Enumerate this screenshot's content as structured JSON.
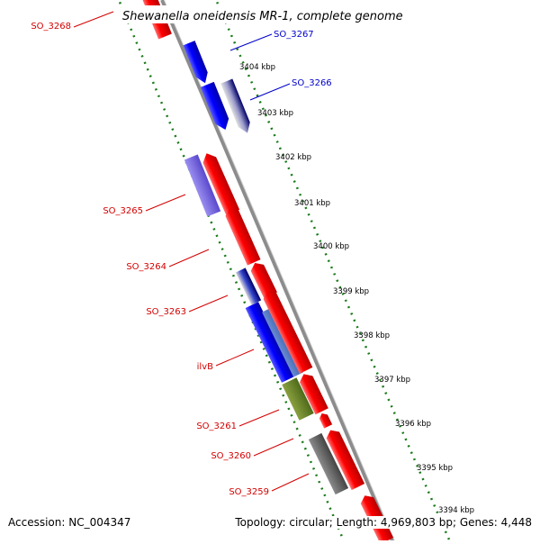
{
  "title": "Shewanella oneidensis MR-1, complete genome",
  "footer": {
    "accession": "Accession: NC_004347",
    "info": "Topology: circular; Length: 4,969,803 bp; Genes: 4,448"
  },
  "colors": {
    "backbone": "#8c8c8c",
    "tick": "#1a7a1a",
    "red_label": "#d40000",
    "blue_label": "#0000cc"
  },
  "kbp_ticks": [
    "3404 kbp",
    "3403 kbp",
    "3402 kbp",
    "3401 kbp",
    "3400 kbp",
    "3399 kbp",
    "3398 kbp",
    "3397 kbp",
    "3396 kbp",
    "3395 kbp",
    "3394 kbp"
  ],
  "gene_labels": [
    {
      "text": "SO_3268",
      "color": "red"
    },
    {
      "text": "SO_3267",
      "color": "blue"
    },
    {
      "text": "SO_3266",
      "color": "blue"
    },
    {
      "text": "SO_3265",
      "color": "red"
    },
    {
      "text": "SO_3264",
      "color": "red"
    },
    {
      "text": "SO_3263",
      "color": "red"
    },
    {
      "text": "ilvB",
      "color": "red"
    },
    {
      "text": "SO_3261",
      "color": "red"
    },
    {
      "text": "SO_3260",
      "color": "red"
    },
    {
      "text": "SO_3259",
      "color": "red"
    }
  ]
}
